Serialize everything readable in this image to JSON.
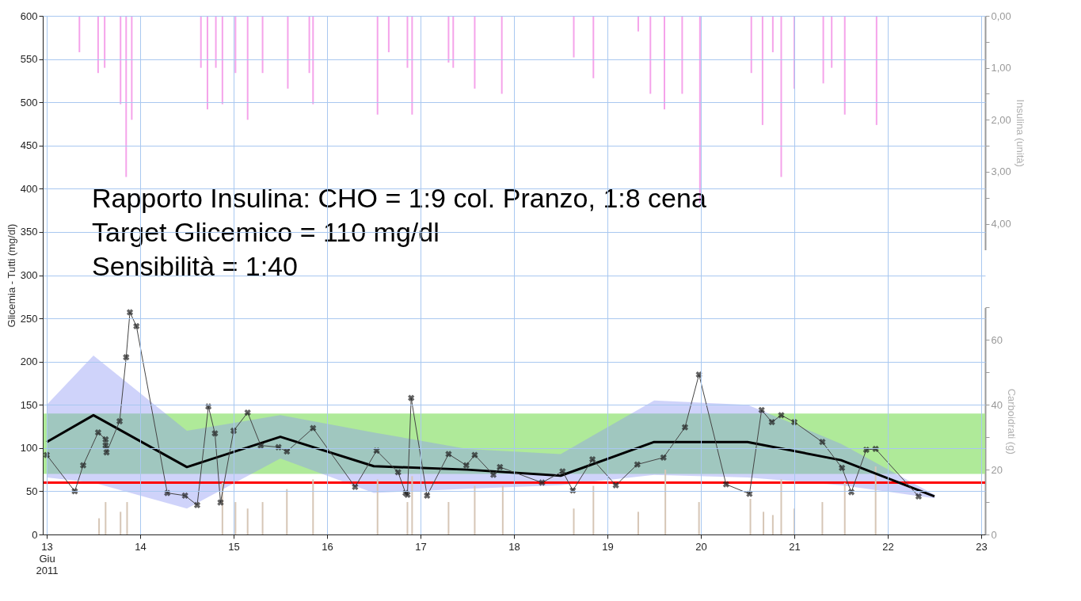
{
  "chart_data": {
    "type": "line",
    "ylabel": "Glicemia - Tutti (mg/dl)",
    "y2label": "Insulina (unità)",
    "y3label": "Carboidrati (g)",
    "annotations": [
      "Rapporto Insulina: CHO = 1:9 col. Pranzo, 1:8 cena",
      "Target Glicemico = 110 mg/dl",
      "Sensibilità = 1:40"
    ],
    "xlim": [
      13,
      23
    ],
    "xticks": [
      {
        "value": 13,
        "label": "13\nGiu\n2011"
      },
      14,
      15,
      16,
      17,
      18,
      19,
      20,
      21,
      22,
      23
    ],
    "ylim": [
      0,
      600
    ],
    "yticks": [
      0,
      50,
      100,
      150,
      200,
      250,
      300,
      350,
      400,
      450,
      500,
      550,
      600
    ],
    "y2lim": [
      4.5,
      0
    ],
    "y2ticks": [
      {
        "value": 0,
        "label": "0,00"
      },
      {
        "value": 0.5,
        "label": null
      },
      {
        "value": 1,
        "label": "1,00"
      },
      {
        "value": 1.5,
        "label": null
      },
      {
        "value": 2,
        "label": "2,00"
      },
      {
        "value": 2.5,
        "label": null
      },
      {
        "value": 3,
        "label": "3,00"
      },
      {
        "value": 3.5,
        "label": null
      },
      {
        "value": 4,
        "label": "4,00"
      }
    ],
    "y3lim": [
      0,
      70
    ],
    "y3ticks": [
      0,
      {
        "value": 10,
        "label": null
      },
      20,
      {
        "value": 30,
        "label": null
      },
      40,
      {
        "value": 50,
        "label": null
      },
      60,
      {
        "value": 70,
        "label": null
      }
    ],
    "grid": true,
    "bands": [
      {
        "axis": "y",
        "from": 70,
        "to": 140,
        "color": "#a6e88e"
      }
    ],
    "ref_lines": [
      {
        "axis": "y",
        "value": 60,
        "color": "#ff0000"
      }
    ],
    "series": [
      {
        "type": "bar",
        "axis": "y2",
        "color": "#f5a3ea",
        "x": [
          13.35,
          13.55,
          13.62,
          13.79,
          13.85,
          13.91,
          14.65,
          14.72,
          14.81,
          14.88,
          15.02,
          15.15,
          15.31,
          15.58,
          15.81,
          15.85,
          16.54,
          16.66,
          16.86,
          16.91,
          17.3,
          17.35,
          17.58,
          17.87,
          18.64,
          18.85,
          19.33,
          19.46,
          19.61,
          19.8,
          19.99,
          20.54,
          20.66,
          20.77,
          20.86,
          21.0,
          21.31,
          21.4,
          21.54,
          21.88
        ],
        "values": [
          0.7,
          1.1,
          1.0,
          1.7,
          3.1,
          2.0,
          1.0,
          1.8,
          1.0,
          1.7,
          1.1,
          2.0,
          1.1,
          1.4,
          1.1,
          1.7,
          1.9,
          0.7,
          1.0,
          1.9,
          0.9,
          1.0,
          1.4,
          1.5,
          0.8,
          1.2,
          0.3,
          1.5,
          1.8,
          1.5,
          3.6,
          1.1,
          2.1,
          0.7,
          3.1,
          1.4,
          1.3,
          1.0,
          1.9,
          2.1
        ]
      },
      {
        "type": "bar",
        "axis": "y3",
        "color": "#d6c6b6",
        "x": [
          13.56,
          13.63,
          13.79,
          13.86,
          14.88,
          15.02,
          15.15,
          15.31,
          15.57,
          15.85,
          16.54,
          16.86,
          16.91,
          17.3,
          17.58,
          17.88,
          18.64,
          18.85,
          19.33,
          19.62,
          19.98,
          20.53,
          20.67,
          20.77,
          20.86,
          21.0,
          21.3,
          21.54,
          21.87
        ],
        "values": [
          5,
          10,
          7,
          10,
          16,
          10,
          8,
          10,
          14,
          17,
          17,
          10,
          18,
          10,
          15,
          15,
          8,
          15,
          7,
          20,
          10,
          11,
          7,
          6,
          17,
          8,
          10,
          16,
          21
        ]
      },
      {
        "color": "#000000",
        "marker": "none",
        "x": [
          13,
          13.5,
          14.5,
          15.5,
          16.5,
          17.5,
          18.5,
          19.5,
          20.5,
          21.5,
          22.5
        ],
        "values": [
          107,
          138,
          78,
          113,
          79,
          75,
          68,
          107,
          107,
          86,
          44
        ],
        "lower": [
          66,
          60,
          30,
          88,
          48,
          53,
          57,
          69,
          66,
          57,
          42
        ],
        "upper": [
          150,
          207,
          120,
          138,
          118,
          99,
          93,
          155,
          150,
          105,
          46
        ]
      },
      {
        "color": "#444444",
        "marker": "cross",
        "x": [
          13.0,
          13.3,
          13.39,
          13.55,
          13.63,
          13.63,
          13.64,
          13.78,
          13.85,
          13.89,
          13.96,
          14.29,
          14.48,
          14.61,
          14.73,
          14.8,
          14.86,
          15.0,
          15.15,
          15.29,
          15.48,
          15.57,
          15.85,
          16.3,
          16.53,
          16.76,
          16.84,
          16.86,
          16.9,
          17.07,
          17.3,
          17.49,
          17.58,
          17.78,
          17.85,
          18.3,
          18.52,
          18.63,
          18.84,
          19.09,
          19.32,
          19.6,
          19.83,
          19.98,
          20.27,
          20.52,
          20.65,
          20.76,
          20.86,
          21.0,
          21.3,
          21.51,
          21.61,
          21.77,
          21.87,
          22.33
        ],
        "values": [
          92,
          50,
          80,
          118,
          110,
          103,
          95,
          131,
          205,
          257,
          241,
          48,
          45,
          34,
          148,
          117,
          37,
          120,
          141,
          103,
          101,
          96,
          123,
          55,
          97,
          72,
          48,
          46,
          158,
          45,
          93,
          80,
          92,
          69,
          78,
          60,
          73,
          51,
          87,
          57,
          81,
          89,
          124,
          185,
          58,
          47,
          144,
          130,
          138,
          130,
          107,
          77,
          49,
          98,
          99,
          44
        ]
      }
    ]
  }
}
